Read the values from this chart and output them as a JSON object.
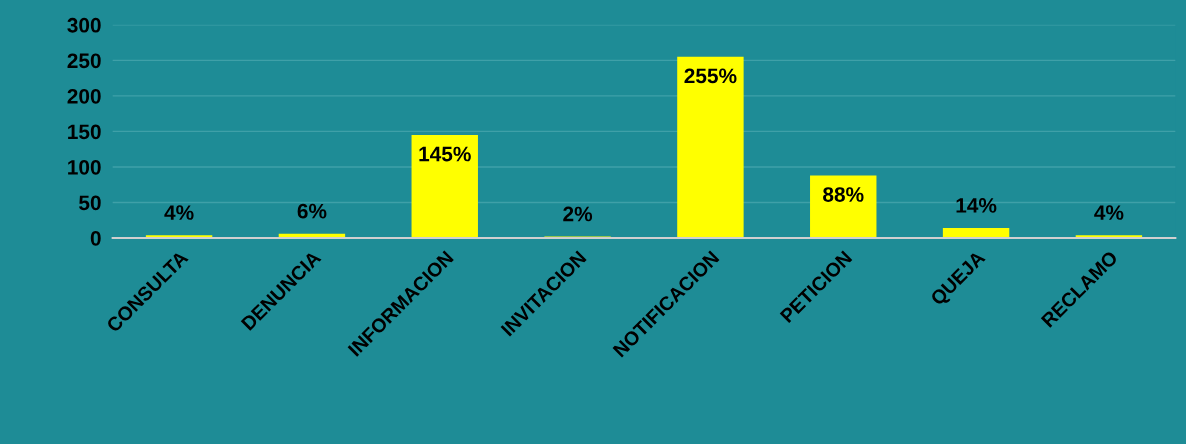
{
  "chart_data": {
    "type": "bar",
    "categories": [
      "CONSULTA",
      "DENUNCIA",
      "INFORMACION",
      "INVITACION",
      "NOTIFICACION",
      "PETICION",
      "QUEJA",
      "RECLAMO"
    ],
    "values": [
      4,
      6,
      145,
      2,
      255,
      88,
      14,
      4
    ],
    "value_labels": [
      "4%",
      "6%",
      "145%",
      "2%",
      "255%",
      "88%",
      "14%",
      "4%"
    ],
    "color": "#ffff00",
    "ylim": [
      0,
      300
    ],
    "yticks": [
      0,
      50,
      100,
      150,
      200,
      250,
      300
    ],
    "grid": "y",
    "legend": false
  }
}
